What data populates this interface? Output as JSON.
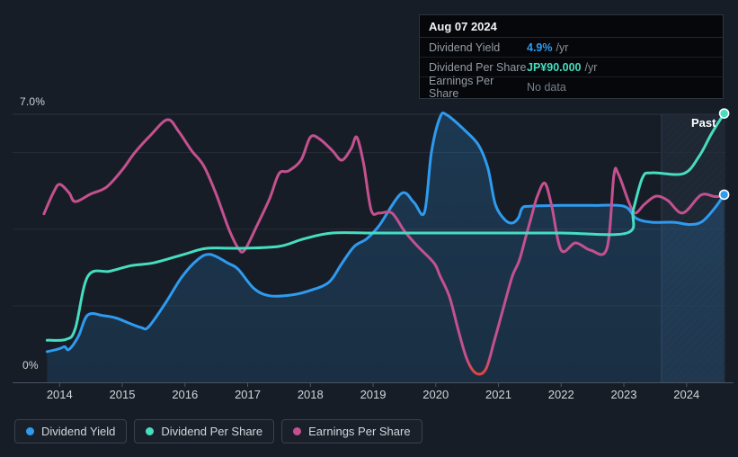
{
  "colors": {
    "blue": "#2e9bf0",
    "teal": "#46ddc1",
    "pink": "#c4518f",
    "red": "#e8432e",
    "grid": "#262d38",
    "topline": "#2b323d",
    "axis": "#4d5563",
    "past_fill": "rgba(110,162,216,0.08)",
    "past_line": "rgba(145,185,228,0.18)"
  },
  "tooltip": {
    "date": "Aug 07 2024",
    "rows": [
      {
        "label": "Dividend Yield",
        "value": "4.9%",
        "suffix": "/yr",
        "color_key": "blue"
      },
      {
        "label": "Dividend Per Share",
        "value": "JP¥90.000",
        "suffix": "/yr",
        "color_key": "teal"
      },
      {
        "label": "Earnings Per Share",
        "value": "No data",
        "suffix": "",
        "color_key": "muted"
      }
    ]
  },
  "past_label": "Past",
  "axis_labels": {
    "y_top": "7.0%",
    "y_bottom": "0%"
  },
  "legend": [
    {
      "label": "Dividend Yield",
      "color_key": "blue"
    },
    {
      "label": "Dividend Per Share",
      "color_key": "teal"
    },
    {
      "label": "Earnings Per Share",
      "color_key": "pink"
    }
  ],
  "chart_data": {
    "type": "line",
    "unit": "%",
    "x_min": 2013.25,
    "x_max": 2024.62,
    "y_min": 0,
    "y_max": 7.0,
    "x_tick_years": [
      2014,
      2015,
      2016,
      2017,
      2018,
      2019,
      2020,
      2021,
      2022,
      2023,
      2024
    ],
    "gridlines": [
      2,
      4,
      6
    ],
    "top_gridline": 7.0,
    "past_start": 2023.6,
    "legend_position": "bottom",
    "series": [
      {
        "name": "Dividend Yield",
        "color_key": "blue",
        "area": true,
        "end_dot": true,
        "values": [
          [
            2013.8,
            0.8
          ],
          [
            2014.0,
            0.88
          ],
          [
            2014.08,
            0.93
          ],
          [
            2014.15,
            0.86
          ],
          [
            2014.3,
            1.2
          ],
          [
            2014.45,
            1.76
          ],
          [
            2014.7,
            1.74
          ],
          [
            2014.9,
            1.68
          ],
          [
            2015.1,
            1.55
          ],
          [
            2015.3,
            1.43
          ],
          [
            2015.42,
            1.45
          ],
          [
            2015.7,
            2.1
          ],
          [
            2015.95,
            2.75
          ],
          [
            2016.2,
            3.2
          ],
          [
            2016.4,
            3.34
          ],
          [
            2016.7,
            3.1
          ],
          [
            2016.85,
            2.95
          ],
          [
            2017.1,
            2.45
          ],
          [
            2017.35,
            2.26
          ],
          [
            2017.7,
            2.28
          ],
          [
            2018.0,
            2.4
          ],
          [
            2018.3,
            2.62
          ],
          [
            2018.5,
            3.1
          ],
          [
            2018.7,
            3.55
          ],
          [
            2018.9,
            3.75
          ],
          [
            2019.1,
            4.1
          ],
          [
            2019.45,
            4.93
          ],
          [
            2019.65,
            4.7
          ],
          [
            2019.82,
            4.44
          ],
          [
            2019.93,
            6.0
          ],
          [
            2020.07,
            6.93
          ],
          [
            2020.18,
            6.98
          ],
          [
            2020.45,
            6.6
          ],
          [
            2020.68,
            6.2
          ],
          [
            2020.83,
            5.6
          ],
          [
            2020.95,
            4.65
          ],
          [
            2021.1,
            4.25
          ],
          [
            2021.22,
            4.16
          ],
          [
            2021.32,
            4.3
          ],
          [
            2021.38,
            4.55
          ],
          [
            2021.5,
            4.6
          ],
          [
            2022.0,
            4.62
          ],
          [
            2022.5,
            4.62
          ],
          [
            2023.0,
            4.6
          ],
          [
            2023.2,
            4.28
          ],
          [
            2023.45,
            4.18
          ],
          [
            2023.8,
            4.18
          ],
          [
            2024.05,
            4.12
          ],
          [
            2024.25,
            4.2
          ],
          [
            2024.45,
            4.55
          ],
          [
            2024.6,
            4.9
          ]
        ]
      },
      {
        "name": "Earnings Per Share",
        "color_key": "pink",
        "area": false,
        "end_dot": false,
        "low_value_color_key": "red",
        "values": [
          [
            2013.75,
            4.4
          ],
          [
            2013.9,
            4.95
          ],
          [
            2014.0,
            5.17
          ],
          [
            2014.15,
            4.95
          ],
          [
            2014.25,
            4.72
          ],
          [
            2014.5,
            4.92
          ],
          [
            2014.75,
            5.1
          ],
          [
            2015.0,
            5.55
          ],
          [
            2015.2,
            6.0
          ],
          [
            2015.45,
            6.45
          ],
          [
            2015.72,
            6.86
          ],
          [
            2015.9,
            6.55
          ],
          [
            2016.1,
            6.06
          ],
          [
            2016.3,
            5.65
          ],
          [
            2016.5,
            4.9
          ],
          [
            2016.7,
            4.0
          ],
          [
            2016.85,
            3.5
          ],
          [
            2016.95,
            3.45
          ],
          [
            2017.15,
            4.1
          ],
          [
            2017.35,
            4.8
          ],
          [
            2017.5,
            5.45
          ],
          [
            2017.65,
            5.52
          ],
          [
            2017.85,
            5.8
          ],
          [
            2018.0,
            6.4
          ],
          [
            2018.15,
            6.35
          ],
          [
            2018.35,
            6.05
          ],
          [
            2018.5,
            5.8
          ],
          [
            2018.65,
            6.1
          ],
          [
            2018.74,
            6.4
          ],
          [
            2018.85,
            5.7
          ],
          [
            2018.97,
            4.5
          ],
          [
            2019.1,
            4.42
          ],
          [
            2019.3,
            4.42
          ],
          [
            2019.5,
            3.95
          ],
          [
            2019.7,
            3.57
          ],
          [
            2019.97,
            3.12
          ],
          [
            2020.07,
            2.77
          ],
          [
            2020.22,
            2.23
          ],
          [
            2020.36,
            1.36
          ],
          [
            2020.5,
            0.59
          ],
          [
            2020.65,
            0.23
          ],
          [
            2020.8,
            0.35
          ],
          [
            2020.93,
            1.06
          ],
          [
            2021.08,
            1.95
          ],
          [
            2021.22,
            2.77
          ],
          [
            2021.33,
            3.17
          ],
          [
            2021.43,
            3.76
          ],
          [
            2021.53,
            4.35
          ],
          [
            2021.62,
            4.86
          ],
          [
            2021.74,
            5.2
          ],
          [
            2021.85,
            4.6
          ],
          [
            2022.0,
            3.45
          ],
          [
            2022.23,
            3.64
          ],
          [
            2022.47,
            3.45
          ],
          [
            2022.73,
            3.5
          ],
          [
            2022.84,
            5.4
          ],
          [
            2022.91,
            5.45
          ],
          [
            2023.08,
            4.7
          ],
          [
            2023.18,
            4.42
          ],
          [
            2023.33,
            4.65
          ],
          [
            2023.51,
            4.86
          ],
          [
            2023.7,
            4.75
          ],
          [
            2023.94,
            4.42
          ],
          [
            2024.23,
            4.89
          ],
          [
            2024.45,
            4.85
          ],
          [
            2024.58,
            4.86
          ]
        ]
      },
      {
        "name": "Dividend Per Share",
        "color_key": "teal",
        "area": false,
        "end_dot": true,
        "values": [
          [
            2013.8,
            1.1
          ],
          [
            2014.1,
            1.12
          ],
          [
            2014.25,
            1.4
          ],
          [
            2014.45,
            2.77
          ],
          [
            2014.8,
            2.9
          ],
          [
            2015.15,
            3.05
          ],
          [
            2015.5,
            3.12
          ],
          [
            2016.0,
            3.35
          ],
          [
            2016.35,
            3.5
          ],
          [
            2016.9,
            3.5
          ],
          [
            2017.5,
            3.55
          ],
          [
            2017.9,
            3.75
          ],
          [
            2018.35,
            3.9
          ],
          [
            2019.0,
            3.9
          ],
          [
            2020.0,
            3.9
          ],
          [
            2021.0,
            3.9
          ],
          [
            2022.0,
            3.9
          ],
          [
            2023.05,
            3.9
          ],
          [
            2023.15,
            4.5
          ],
          [
            2023.3,
            5.35
          ],
          [
            2023.45,
            5.47
          ],
          [
            2023.95,
            5.45
          ],
          [
            2024.2,
            5.9
          ],
          [
            2024.4,
            6.5
          ],
          [
            2024.6,
            7.02
          ]
        ]
      }
    ]
  }
}
